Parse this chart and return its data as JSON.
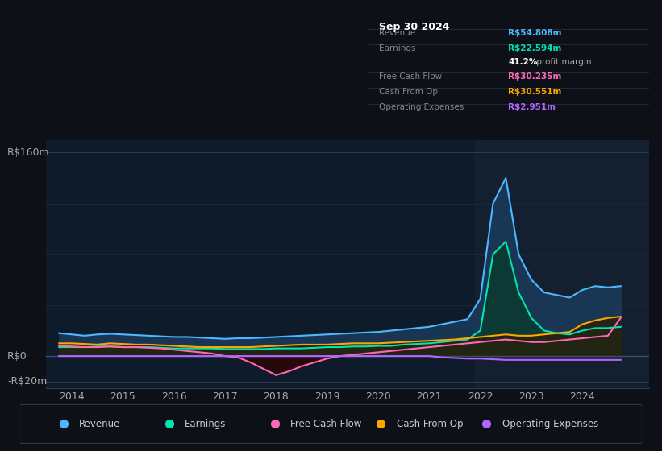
{
  "bg_color": "#0d1117",
  "plot_bg_color": "#0d1b2a",
  "ylabel_top": "R$160m",
  "ylabel_zero": "R$0",
  "ylabel_neg": "-R$20m",
  "legend_items": [
    {
      "label": "Revenue",
      "color": "#4db8ff"
    },
    {
      "label": "Earnings",
      "color": "#00e5b0"
    },
    {
      "label": "Free Cash Flow",
      "color": "#ff69b4"
    },
    {
      "label": "Cash From Op",
      "color": "#ffa500"
    },
    {
      "label": "Operating Expenses",
      "color": "#b366ff"
    }
  ],
  "tooltip": {
    "date": "Sep 30 2024",
    "revenue": "R$54.808m",
    "earnings": "R$22.594m",
    "profit_margin": "41.2%",
    "free_cash_flow": "R$30.235m",
    "cash_from_op": "R$30.551m",
    "operating_expenses": "R$2.951m"
  },
  "tooltip_colors": {
    "revenue": "#4db8ff",
    "earnings": "#00e5b0",
    "profit_margin": "#ffffff",
    "free_cash_flow": "#ff69b4",
    "cash_from_op": "#ffa500",
    "operating_expenses": "#b366ff"
  },
  "series": {
    "x": [
      2013.75,
      2014.0,
      2014.25,
      2014.5,
      2014.75,
      2015.0,
      2015.25,
      2015.5,
      2015.75,
      2016.0,
      2016.25,
      2016.5,
      2016.75,
      2017.0,
      2017.25,
      2017.5,
      2017.75,
      2018.0,
      2018.25,
      2018.5,
      2018.75,
      2019.0,
      2019.25,
      2019.5,
      2019.75,
      2020.0,
      2020.25,
      2020.5,
      2020.75,
      2021.0,
      2021.25,
      2021.5,
      2021.75,
      2022.0,
      2022.25,
      2022.5,
      2022.75,
      2023.0,
      2023.25,
      2023.5,
      2023.75,
      2024.0,
      2024.25,
      2024.5,
      2024.75
    ],
    "revenue": [
      18,
      17,
      16,
      17,
      17.5,
      17,
      16.5,
      16,
      15.5,
      15,
      15,
      14.5,
      14,
      13.5,
      14,
      14,
      14.5,
      15,
      15.5,
      16,
      16.5,
      17,
      17.5,
      18,
      18.5,
      19,
      20,
      21,
      22,
      23,
      25,
      27,
      29,
      45,
      120,
      140,
      80,
      60,
      50,
      48,
      46,
      52,
      55,
      54,
      55
    ],
    "earnings": [
      7,
      7,
      7,
      7.5,
      7.5,
      7,
      7,
      7,
      6.5,
      6,
      6,
      6,
      6,
      5.5,
      5.5,
      5.5,
      5.5,
      6,
      6,
      6,
      6.5,
      7,
      7,
      7.5,
      7.5,
      8,
      8,
      9,
      9.5,
      10,
      11,
      12,
      13,
      20,
      80,
      90,
      50,
      30,
      20,
      18,
      17,
      20,
      22,
      22,
      23
    ],
    "free_cash_flow": [
      8,
      7.5,
      7,
      7,
      7.5,
      7,
      7,
      6.5,
      6,
      5,
      4,
      3,
      2,
      0,
      -1,
      -5,
      -10,
      -15,
      -12,
      -8,
      -5,
      -2,
      0,
      1,
      2,
      3,
      4,
      5,
      6,
      7,
      8,
      9,
      10,
      11,
      12,
      13,
      12,
      11,
      11,
      12,
      13,
      14,
      15,
      16,
      30
    ],
    "cash_from_op": [
      10,
      10,
      9.5,
      9,
      10,
      9.5,
      9,
      9,
      8.5,
      8,
      7.5,
      7,
      7,
      7,
      7,
      7,
      7.5,
      8,
      8.5,
      9,
      9,
      9,
      9.5,
      10,
      10,
      10,
      10.5,
      11,
      11.5,
      12,
      12.5,
      13,
      14,
      15,
      16,
      17,
      16,
      16,
      17,
      18,
      19,
      25,
      28,
      30,
      31
    ],
    "operating_expenses": [
      0,
      0,
      0,
      0,
      0,
      0,
      0,
      0,
      0,
      0,
      0,
      0,
      0,
      0,
      0,
      0,
      0,
      0,
      0,
      0,
      0,
      0,
      0,
      0,
      0,
      0,
      0,
      0,
      0,
      0,
      -1,
      -1.5,
      -2,
      -2,
      -2.5,
      -3,
      -3,
      -3,
      -3,
      -3,
      -3,
      -3,
      -3,
      -3,
      -3
    ]
  },
  "ylim": [
    -25,
    170
  ],
  "xlim": [
    2013.5,
    2025.3
  ],
  "line_width": 1.5,
  "revenue_color": "#4db8ff",
  "earnings_color": "#00e5b0",
  "fcf_color": "#ff69b4",
  "cashop_color": "#ffa500",
  "opex_color": "#b366ff",
  "revenue_fill_color": "#1a3a5c",
  "earnings_fill_color": "#0a3a2e",
  "cashop_fill_color": "#2a1f08",
  "opex_fill_color": "#2a1a3a"
}
